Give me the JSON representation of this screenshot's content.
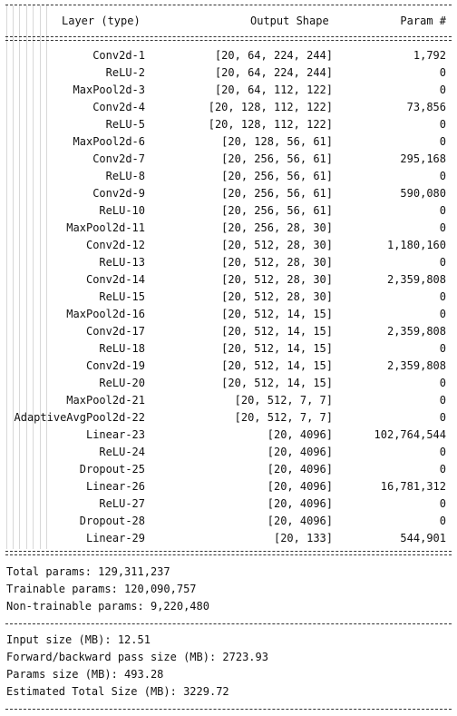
{
  "header": {
    "layer": "Layer (type)",
    "shape": "Output Shape",
    "param": "Param #"
  },
  "rows": [
    {
      "layer": "Conv2d-1",
      "shape": "[20, 64, 224, 244]",
      "param": "1,792"
    },
    {
      "layer": "ReLU-2",
      "shape": "[20, 64, 224, 244]",
      "param": "0"
    },
    {
      "layer": "MaxPool2d-3",
      "shape": "[20, 64, 112, 122]",
      "param": "0"
    },
    {
      "layer": "Conv2d-4",
      "shape": "[20, 128, 112, 122]",
      "param": "73,856"
    },
    {
      "layer": "ReLU-5",
      "shape": "[20, 128, 112, 122]",
      "param": "0"
    },
    {
      "layer": "MaxPool2d-6",
      "shape": "[20, 128, 56, 61]",
      "param": "0"
    },
    {
      "layer": "Conv2d-7",
      "shape": "[20, 256, 56, 61]",
      "param": "295,168"
    },
    {
      "layer": "ReLU-8",
      "shape": "[20, 256, 56, 61]",
      "param": "0"
    },
    {
      "layer": "Conv2d-9",
      "shape": "[20, 256, 56, 61]",
      "param": "590,080"
    },
    {
      "layer": "ReLU-10",
      "shape": "[20, 256, 56, 61]",
      "param": "0"
    },
    {
      "layer": "MaxPool2d-11",
      "shape": "[20, 256, 28, 30]",
      "param": "0"
    },
    {
      "layer": "Conv2d-12",
      "shape": "[20, 512, 28, 30]",
      "param": "1,180,160"
    },
    {
      "layer": "ReLU-13",
      "shape": "[20, 512, 28, 30]",
      "param": "0"
    },
    {
      "layer": "Conv2d-14",
      "shape": "[20, 512, 28, 30]",
      "param": "2,359,808"
    },
    {
      "layer": "ReLU-15",
      "shape": "[20, 512, 28, 30]",
      "param": "0"
    },
    {
      "layer": "MaxPool2d-16",
      "shape": "[20, 512, 14, 15]",
      "param": "0"
    },
    {
      "layer": "Conv2d-17",
      "shape": "[20, 512, 14, 15]",
      "param": "2,359,808"
    },
    {
      "layer": "ReLU-18",
      "shape": "[20, 512, 14, 15]",
      "param": "0"
    },
    {
      "layer": "Conv2d-19",
      "shape": "[20, 512, 14, 15]",
      "param": "2,359,808"
    },
    {
      "layer": "ReLU-20",
      "shape": "[20, 512, 14, 15]",
      "param": "0"
    },
    {
      "layer": "MaxPool2d-21",
      "shape": "[20, 512, 7, 7]",
      "param": "0"
    },
    {
      "layer": "AdaptiveAvgPool2d-22",
      "shape": "[20, 512, 7, 7]",
      "param": "0"
    },
    {
      "layer": "Linear-23",
      "shape": "[20, 4096]",
      "param": "102,764,544"
    },
    {
      "layer": "ReLU-24",
      "shape": "[20, 4096]",
      "param": "0"
    },
    {
      "layer": "Dropout-25",
      "shape": "[20, 4096]",
      "param": "0"
    },
    {
      "layer": "Linear-26",
      "shape": "[20, 4096]",
      "param": "16,781,312"
    },
    {
      "layer": "ReLU-27",
      "shape": "[20, 4096]",
      "param": "0"
    },
    {
      "layer": "Dropout-28",
      "shape": "[20, 4096]",
      "param": "0"
    },
    {
      "layer": "Linear-29",
      "shape": "[20, 133]",
      "param": "544,901"
    }
  ],
  "params": {
    "total": "Total params: 129,311,237",
    "trainable": "Trainable params: 120,090,757",
    "non_trainable": "Non-trainable params: 9,220,480"
  },
  "sizes": {
    "input": "Input size (MB): 12.51",
    "forward_backward": "Forward/backward pass size (MB): 2723.93",
    "params": "Params size (MB): 493.28",
    "estimated_total": "Estimated Total Size (MB): 3229.72"
  }
}
